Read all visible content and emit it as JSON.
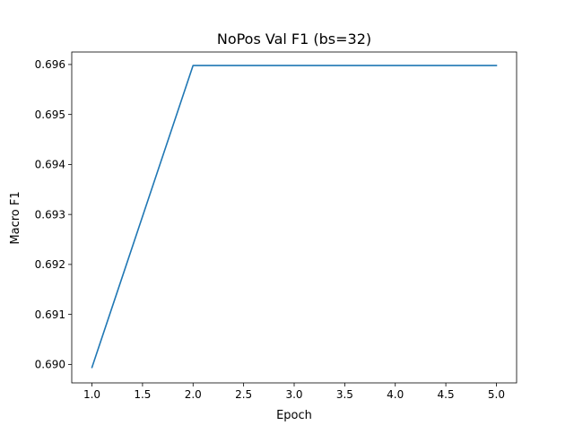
{
  "chart_data": {
    "type": "line",
    "title": "NoPos Val F1 (bs=32)",
    "xlabel": "Epoch",
    "ylabel": "Macro F1",
    "xlim": [
      0.8,
      5.2
    ],
    "ylim": [
      0.68963,
      0.69625
    ],
    "xticks": [
      1.0,
      1.5,
      2.0,
      2.5,
      3.0,
      3.5,
      4.0,
      4.5,
      5.0
    ],
    "xtick_labels": [
      "1.0",
      "1.5",
      "2.0",
      "2.5",
      "3.0",
      "3.5",
      "4.0",
      "4.5",
      "5.0"
    ],
    "yticks": [
      0.69,
      0.691,
      0.692,
      0.693,
      0.694,
      0.695,
      0.696
    ],
    "ytick_labels": [
      "0.690",
      "0.691",
      "0.692",
      "0.693",
      "0.694",
      "0.695",
      "0.696"
    ],
    "grid": false,
    "legend": false,
    "series": [
      {
        "color": "#1f77b4",
        "x": [
          1,
          2,
          3,
          4,
          5
        ],
        "y": [
          0.68994,
          0.69598,
          0.69598,
          0.69598,
          0.69598
        ]
      }
    ]
  }
}
